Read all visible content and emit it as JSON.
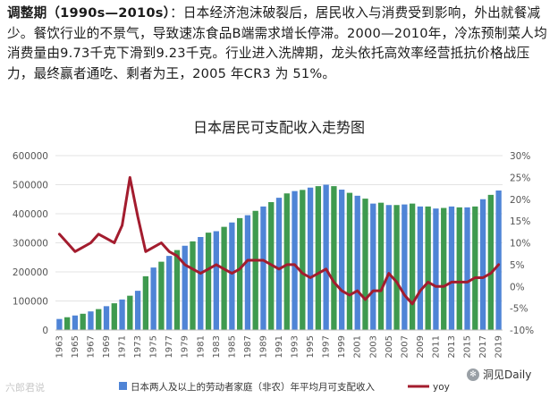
{
  "article": {
    "lead": "调整期（1990s—2010s）",
    "body": "：日本经济泡沫破裂后，居民收入与消费受到影响，外出就餐减少。餐饮行业的不景气，导致速冻食品B端需求增长停滞。2000—2010年，冷冻预制菜人均消费量由9.73千克下滑到9.23千克。行业进入洗牌期，龙头依托高效率经营抵抗价格战压力，最终赢者通吃、剩者为王，2005 年CR3 为 51%。"
  },
  "chart_data": {
    "type": "bar+line",
    "title": "日本居民可支配收入走势图",
    "x": [
      1963,
      1964,
      1965,
      1966,
      1967,
      1968,
      1969,
      1970,
      1971,
      1972,
      1973,
      1974,
      1975,
      1976,
      1977,
      1978,
      1979,
      1980,
      1981,
      1982,
      1983,
      1984,
      1985,
      1986,
      1987,
      1988,
      1989,
      1990,
      1991,
      1992,
      1993,
      1994,
      1995,
      1996,
      1997,
      1998,
      1999,
      2000,
      2001,
      2002,
      2003,
      2004,
      2005,
      2006,
      2007,
      2008,
      2009,
      2010,
      2011,
      2012,
      2013,
      2014,
      2015,
      2016,
      2017,
      2018,
      2019
    ],
    "x_tick_labels": [
      "1963",
      "1965",
      "1967",
      "1969",
      "1971",
      "1973",
      "1975",
      "1977",
      "1979",
      "1981",
      "1983",
      "1985",
      "1987",
      "1989",
      "1991",
      "1993",
      "1995",
      "1997",
      "1999",
      "2001",
      "2003",
      "2005",
      "2007",
      "2009",
      "2011",
      "2013",
      "2015",
      "2017",
      "2019"
    ],
    "bar_colors": [
      "#4f84d6",
      "#3f9a4f"
    ],
    "series": [
      {
        "name": "日本两人及以上的劳动者家庭（非农）年平均月可支配收入",
        "type": "bar",
        "axis": "left",
        "color": "#4f84d6",
        "values": [
          38000,
          44000,
          50000,
          56000,
          64000,
          72000,
          82000,
          92000,
          105000,
          118000,
          135000,
          185000,
          215000,
          235000,
          255000,
          275000,
          290000,
          305000,
          320000,
          335000,
          340000,
          355000,
          370000,
          385000,
          395000,
          410000,
          425000,
          440000,
          455000,
          470000,
          478000,
          482000,
          490000,
          495000,
          500000,
          495000,
          483000,
          472000,
          462000,
          452000,
          435000,
          438000,
          430000,
          430000,
          432000,
          435000,
          425000,
          425000,
          418000,
          420000,
          425000,
          422000,
          422000,
          425000,
          450000,
          465000,
          480000
        ]
      },
      {
        "name": "yoy",
        "type": "line",
        "axis": "right",
        "color": "#a31c2e",
        "values": [
          12,
          10,
          8,
          9,
          10,
          12,
          11,
          10,
          14,
          25,
          16,
          8,
          9,
          10,
          8,
          7,
          5,
          4,
          3,
          4,
          5,
          4,
          3,
          4,
          6,
          6,
          6,
          5,
          4,
          5,
          5,
          3,
          2,
          3,
          4,
          1,
          -1,
          -2,
          -1,
          -3,
          -1,
          -1,
          3,
          1,
          -2,
          -4,
          -1,
          1,
          0,
          0,
          1,
          1,
          1,
          2,
          2,
          3,
          5
        ]
      }
    ],
    "yleft": {
      "min": 0,
      "max": 600000,
      "ticks": [
        0,
        100000,
        200000,
        300000,
        400000,
        500000,
        600000
      ]
    },
    "yright": {
      "min": -10,
      "max": 30,
      "ticks": [
        "-10%",
        "-5%",
        "0%",
        "5%",
        "10%",
        "15%",
        "20%",
        "25%",
        "30%"
      ]
    },
    "legend": [
      "日本两人及以上的劳动者家庭（非农）年平均月可支配收入",
      "yoy"
    ],
    "legend_position": "bottom"
  },
  "watermarks": {
    "left": "六郎君说",
    "right": "洞见Daily"
  }
}
